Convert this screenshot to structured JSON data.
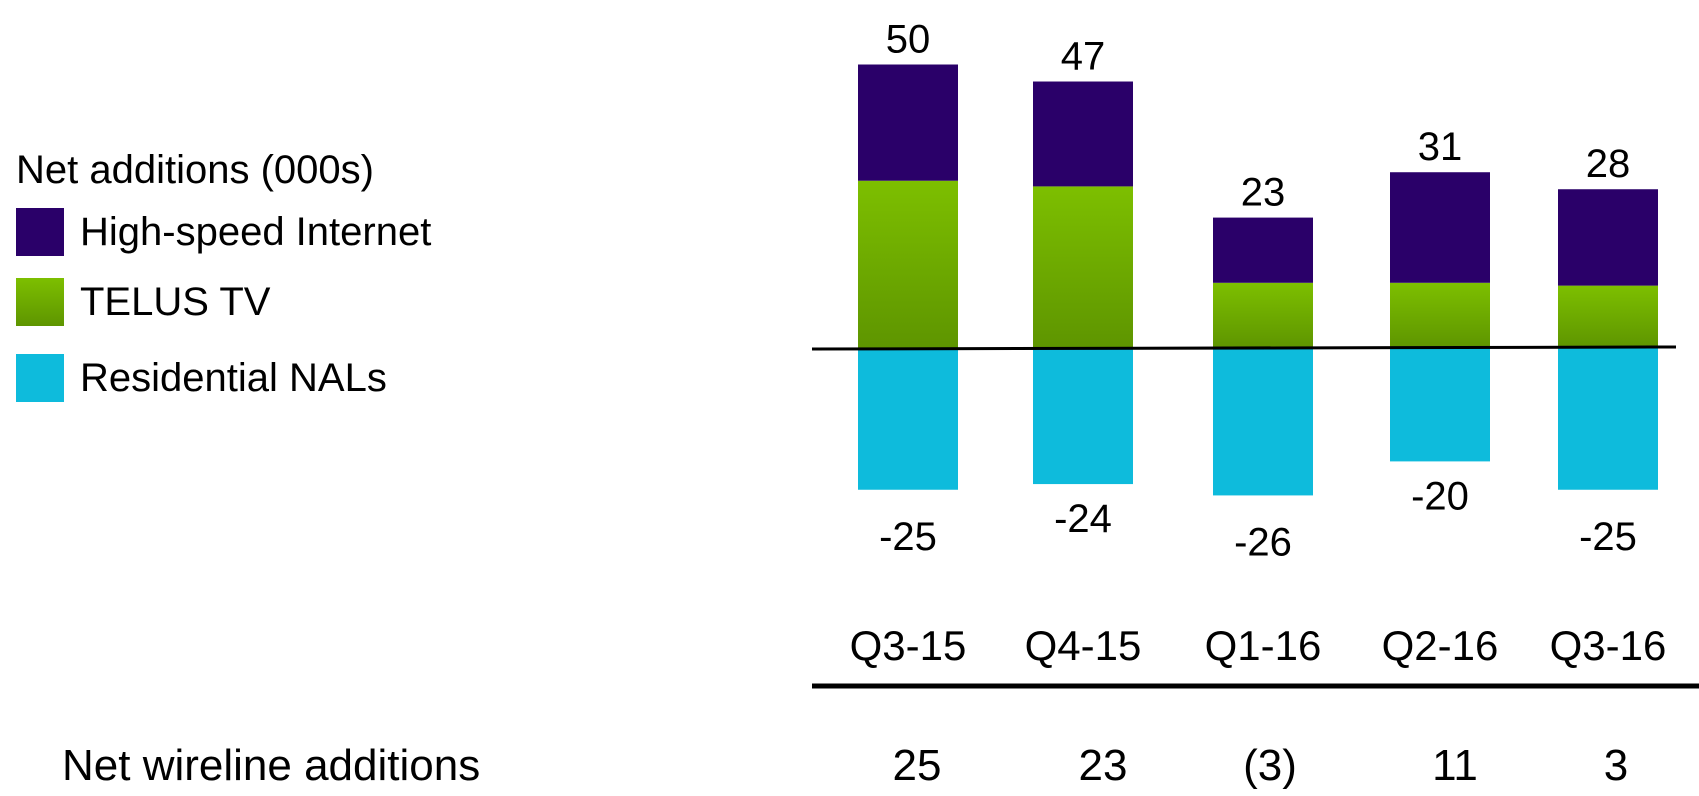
{
  "legend": {
    "title": "Net additions (000s)",
    "items": [
      {
        "label": "High-speed Internet",
        "color": "#2a0069"
      },
      {
        "label": "TELUS TV",
        "color": "#6aa800"
      },
      {
        "label": "Residential NALs",
        "color": "#0ebbdc"
      }
    ]
  },
  "footer": {
    "label": "Net wireline additions",
    "values": [
      "25",
      "23",
      "(3)",
      "11",
      "3"
    ]
  },
  "chart_data": {
    "type": "bar",
    "stacked": true,
    "categories": [
      "Q3-15",
      "Q4-15",
      "Q1-16",
      "Q2-16",
      "Q3-16"
    ],
    "series": [
      {
        "name": "High-speed Internet",
        "color": "#2a0069",
        "values": [
          20.5,
          18.5,
          11.5,
          19.5,
          17
        ]
      },
      {
        "name": "TELUS TV",
        "color": "#6aa800",
        "values": [
          29.5,
          28.5,
          11.5,
          11.5,
          11
        ]
      },
      {
        "name": "Residential NALs",
        "color": "#0ebbdc",
        "values": [
          -25,
          -24,
          -26,
          -20,
          -25
        ]
      }
    ],
    "positive_totals": [
      "50",
      "47",
      "23",
      "31",
      "28"
    ],
    "negative_labels": [
      "-25",
      "-24",
      "-26",
      "-20",
      "-25"
    ],
    "ylim": [
      -30,
      55
    ]
  }
}
